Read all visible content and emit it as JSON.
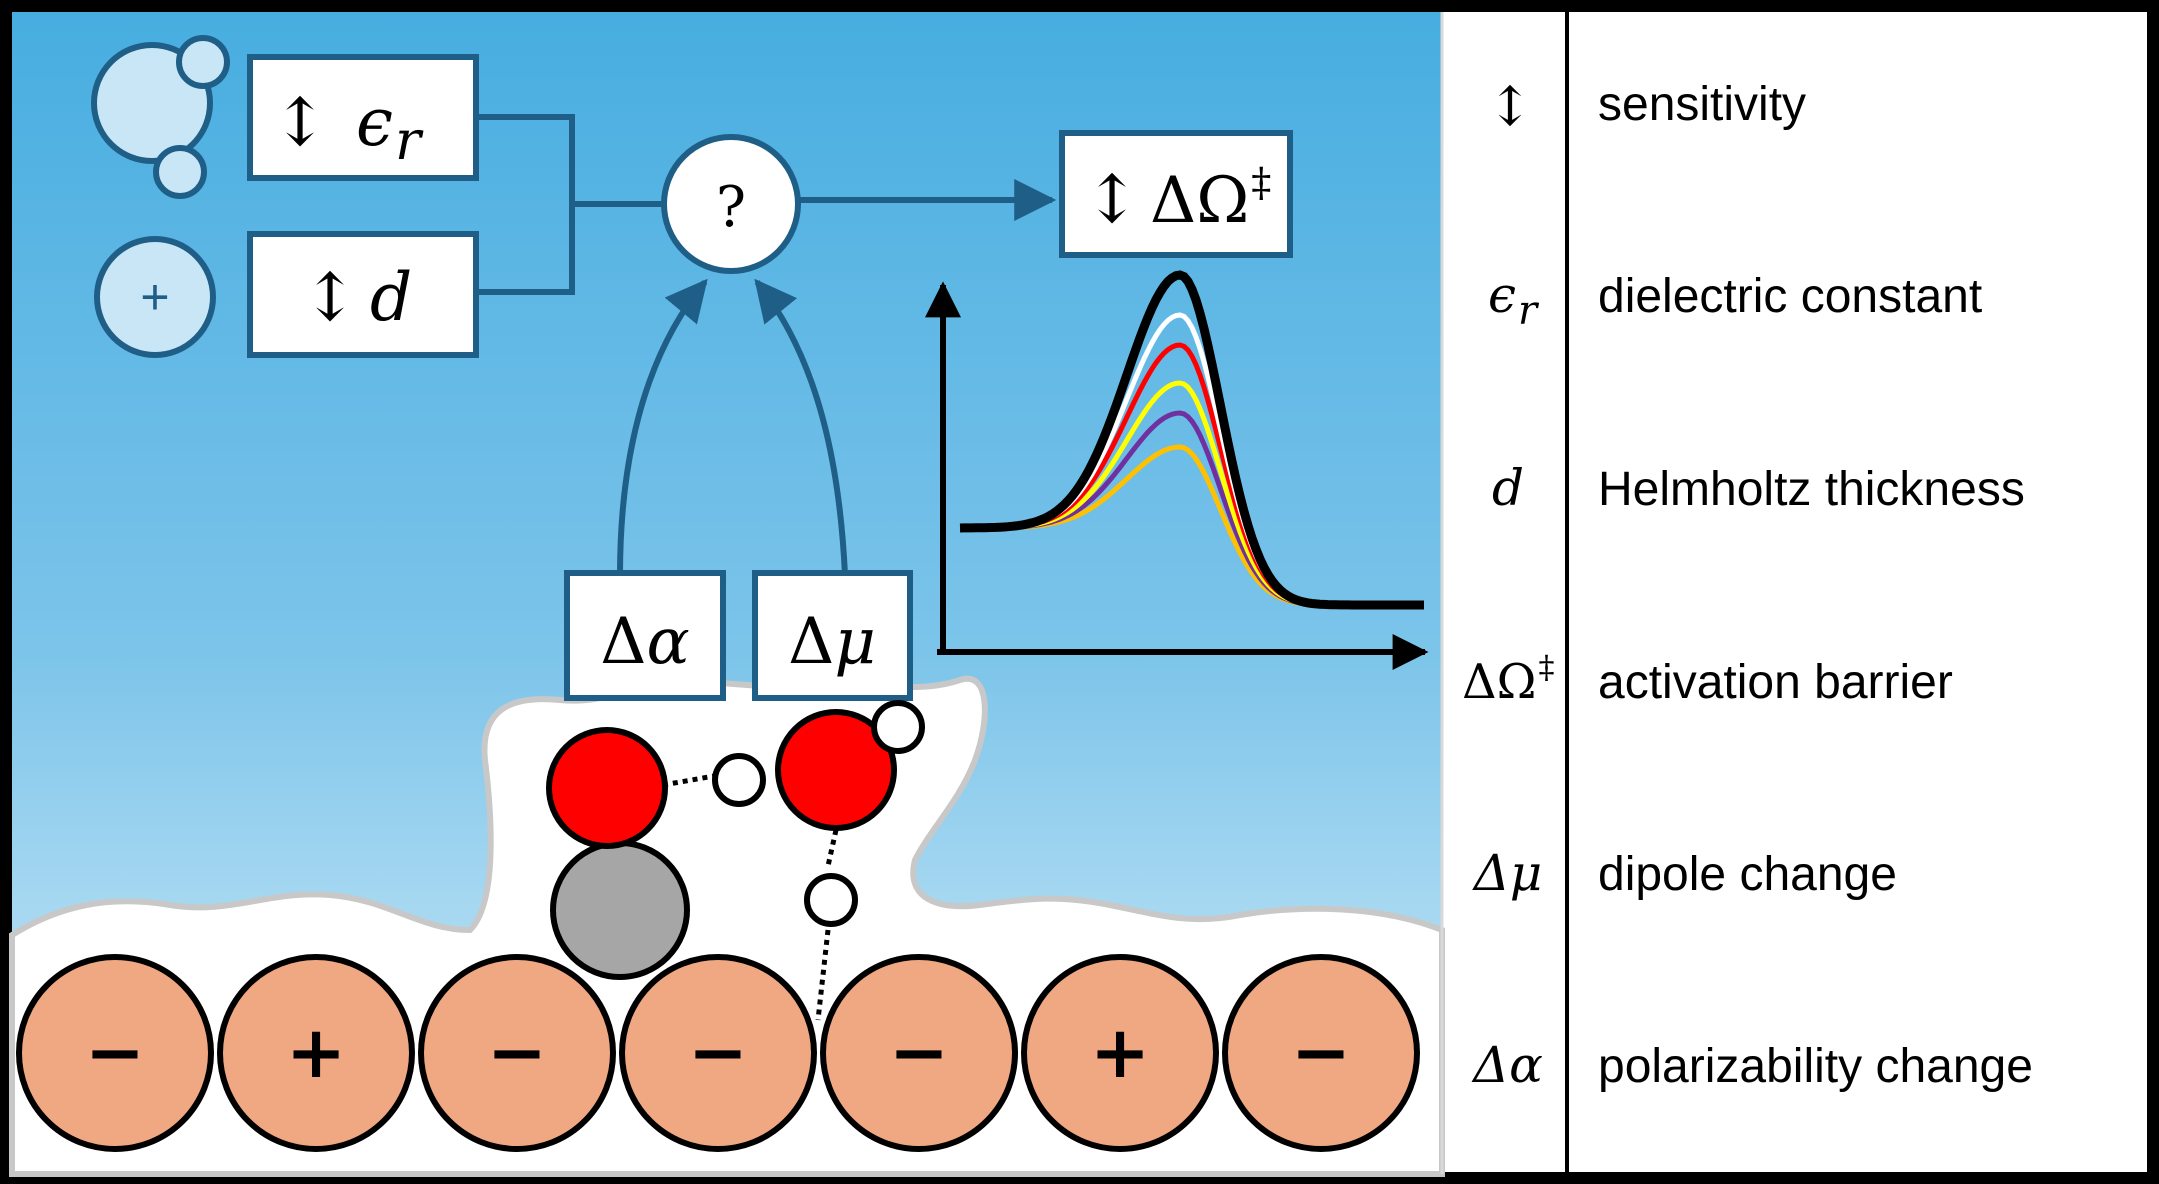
{
  "diagram": {
    "inputs": {
      "epsilon_symbol": "ϵ",
      "epsilon_sub": "r",
      "d_symbol": "d",
      "arrow_glyph": "↕",
      "cation_sign": "+"
    },
    "junction_label": "?",
    "output": {
      "delta": "ΔΩ",
      "dagger": "‡"
    },
    "properties": {
      "alpha": "α",
      "mu": "μ",
      "delta": "Δ"
    },
    "electrode_charges": [
      "−",
      "+",
      "−",
      "−",
      "−",
      "+",
      "−"
    ],
    "energy_curve_colors": [
      "#000000",
      "#ffffff",
      "#ff0000",
      "#ffff00",
      "#7030a0",
      "#ffc000"
    ],
    "colors": {
      "sky_top": "#49b0e0",
      "sky_bottom": "#c8e8f7",
      "box_border": "#1f5f87",
      "electrode": "#f0a882",
      "oxygen": "#ff0000",
      "carbon": "#a6a6a6"
    }
  },
  "legend": {
    "rows": [
      {
        "symbol": "↕",
        "symbol_sub": "",
        "label": "sensitivity"
      },
      {
        "symbol": "ϵ",
        "symbol_sub": "r",
        "label": "dielectric constant"
      },
      {
        "symbol": "d",
        "symbol_sub": "",
        "label": "Helmholtz thickness"
      },
      {
        "symbol": "ΔΩ",
        "symbol_sub": "‡",
        "label": "activation barrier"
      },
      {
        "symbol": "Δμ",
        "symbol_sub": "",
        "label": "dipole change"
      },
      {
        "symbol": "Δα",
        "symbol_sub": "",
        "label": "polarizability change"
      }
    ]
  }
}
